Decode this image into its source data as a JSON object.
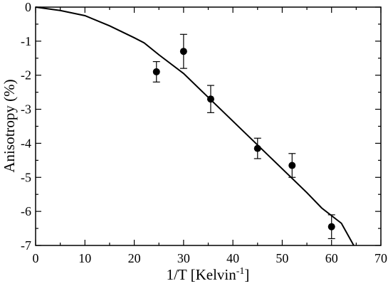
{
  "chart_data": {
    "type": "scatter",
    "xlabel": "1/T  [Kelvin",
    "xlabel_superscript": "-1",
    "xlabel_suffix": "]",
    "ylabel": "Anisotropy (%)",
    "xlim": [
      0,
      70
    ],
    "ylim": [
      -7,
      0
    ],
    "x_ticks": [
      0,
      10,
      20,
      30,
      40,
      50,
      60,
      70
    ],
    "y_ticks": [
      0,
      -1,
      -2,
      -3,
      -4,
      -5,
      -6,
      -7
    ],
    "grid": false,
    "series": [
      {
        "kind": "line",
        "x": [
          0,
          5,
          10,
          15,
          20,
          22,
          25,
          30,
          35,
          40,
          45,
          50,
          55,
          58,
          62,
          64.5
        ],
        "y": [
          0,
          -0.1,
          -0.25,
          -0.55,
          -0.9,
          -1.05,
          -1.4,
          -1.95,
          -2.65,
          -3.35,
          -4.05,
          -4.75,
          -5.45,
          -5.9,
          -6.35,
          -7.0
        ]
      },
      {
        "kind": "points",
        "x": [
          24.5,
          30,
          35.5,
          45,
          52,
          60
        ],
        "y": [
          -1.9,
          -1.3,
          -2.7,
          -4.15,
          -4.65,
          -6.45
        ],
        "err": [
          0.3,
          0.5,
          0.4,
          0.3,
          0.35,
          0.35
        ]
      }
    ]
  }
}
